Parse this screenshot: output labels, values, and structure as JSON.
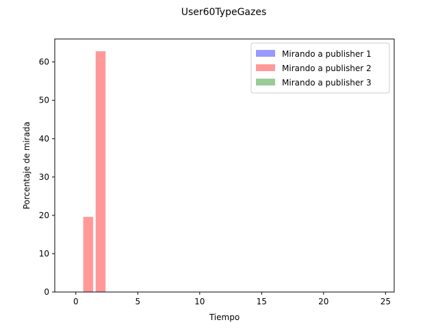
{
  "chart_data": {
    "type": "bar",
    "title": "User60TypeGazes",
    "xlabel": "Tiempo",
    "ylabel": "Porcentaje de mirada",
    "xlim": [
      -1.7,
      25.7
    ],
    "ylim": [
      0,
      66
    ],
    "xticks": [
      0,
      5,
      10,
      15,
      20,
      25
    ],
    "yticks": [
      0,
      10,
      20,
      30,
      40,
      50,
      60
    ],
    "bar_width": 0.8,
    "legend_position": "upper right",
    "series": [
      {
        "name": "Mirando a publisher 1",
        "color": "#9999ff",
        "points": []
      },
      {
        "name": "Mirando a publisher 2",
        "color": "#ff9999",
        "points": [
          {
            "x": 1,
            "y": 19.6
          },
          {
            "x": 2,
            "y": 62.8
          }
        ]
      },
      {
        "name": "Mirando a publisher 3",
        "color": "#99cc99",
        "points": []
      }
    ]
  }
}
